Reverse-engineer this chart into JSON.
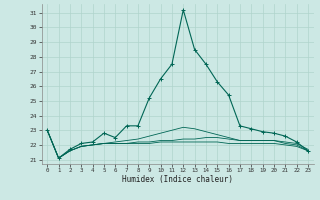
{
  "xlabel": "Humidex (Indice chaleur)",
  "background_color": "#cce8e4",
  "grid_color": "#b0d4cc",
  "line_color": "#006655",
  "xlim": [
    -0.5,
    23.5
  ],
  "ylim": [
    20.7,
    31.6
  ],
  "yticks": [
    21,
    22,
    23,
    24,
    25,
    26,
    27,
    28,
    29,
    30,
    31
  ],
  "xticks": [
    0,
    1,
    2,
    3,
    4,
    5,
    6,
    7,
    8,
    9,
    10,
    11,
    12,
    13,
    14,
    15,
    16,
    17,
    18,
    19,
    20,
    21,
    22,
    23
  ],
  "hours": [
    0,
    1,
    2,
    3,
    4,
    5,
    6,
    7,
    8,
    9,
    10,
    11,
    12,
    13,
    14,
    15,
    16,
    17,
    18,
    19,
    20,
    21,
    22,
    23
  ],
  "curve_main": [
    23.0,
    21.1,
    21.7,
    22.1,
    22.2,
    22.8,
    22.5,
    23.3,
    23.3,
    25.2,
    26.5,
    27.5,
    31.2,
    28.5,
    27.5,
    26.3,
    25.4,
    23.3,
    23.1,
    22.9,
    22.8,
    22.6,
    22.2,
    21.6
  ],
  "curve2": [
    23.0,
    21.1,
    21.6,
    21.9,
    22.0,
    22.1,
    22.1,
    22.1,
    22.2,
    22.2,
    22.3,
    22.3,
    22.4,
    22.4,
    22.5,
    22.5,
    22.4,
    22.3,
    22.3,
    22.3,
    22.3,
    22.2,
    22.1,
    21.7
  ],
  "curve3": [
    23.0,
    21.1,
    21.6,
    21.9,
    22.0,
    22.1,
    22.1,
    22.1,
    22.1,
    22.1,
    22.2,
    22.2,
    22.2,
    22.2,
    22.2,
    22.2,
    22.1,
    22.1,
    22.1,
    22.1,
    22.1,
    22.0,
    21.9,
    21.6
  ],
  "curve4": [
    23.0,
    21.1,
    21.6,
    21.9,
    22.0,
    22.1,
    22.2,
    22.3,
    22.4,
    22.6,
    22.8,
    23.0,
    23.2,
    23.1,
    22.9,
    22.7,
    22.5,
    22.3,
    22.3,
    22.3,
    22.3,
    22.1,
    22.0,
    21.6
  ]
}
